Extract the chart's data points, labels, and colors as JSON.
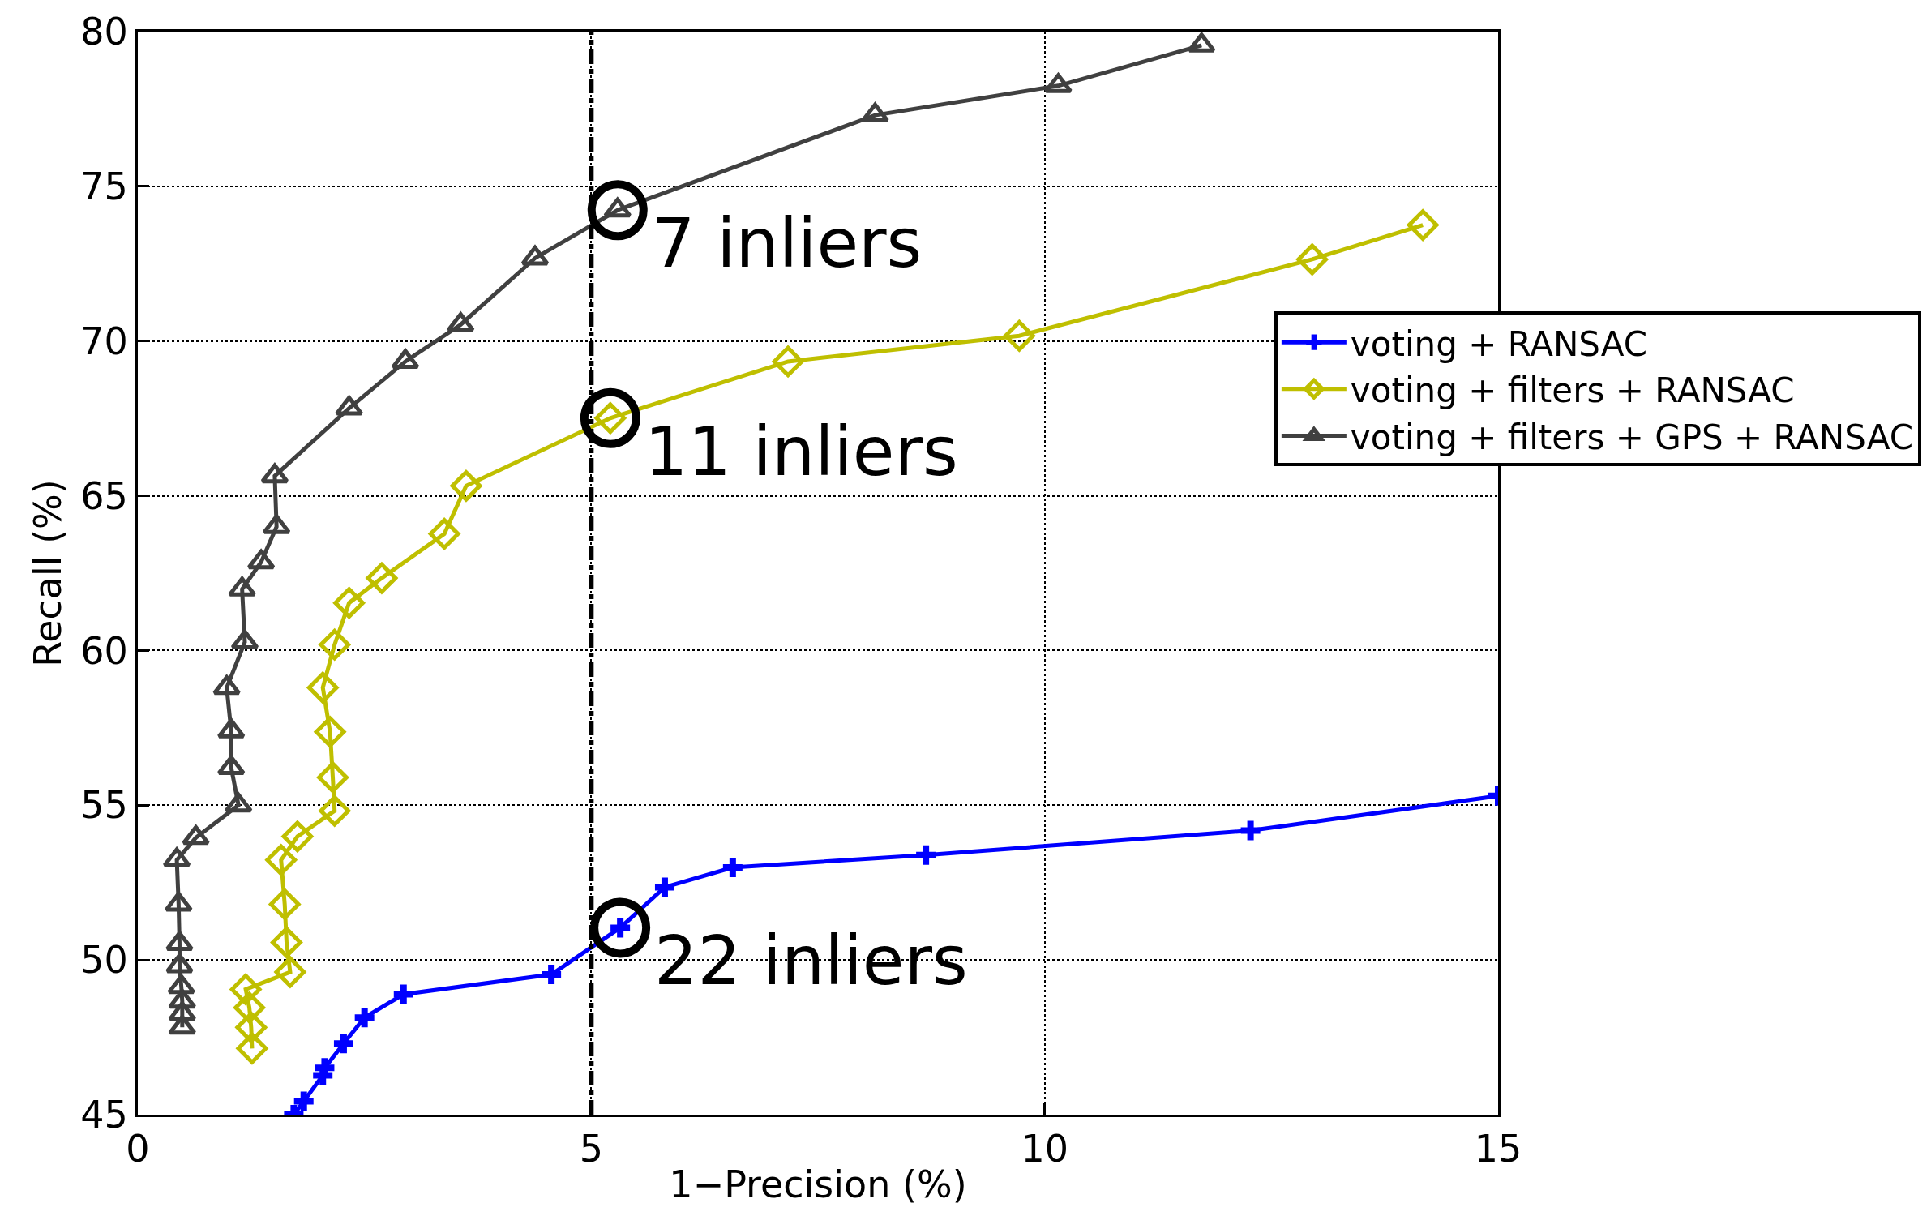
{
  "chart_data": {
    "type": "line",
    "xlabel": "1−Precision (%)",
    "ylabel": "Recall (%)",
    "xlim": [
      0,
      15
    ],
    "ylim": [
      45,
      80
    ],
    "xticks": [
      0,
      5,
      10,
      15
    ],
    "yticks": [
      45,
      50,
      55,
      60,
      65,
      70,
      75,
      80
    ],
    "grid": true,
    "legend": "right",
    "series": [
      {
        "name": "voting + RANSAC",
        "color": "#0000ff",
        "marker": "cross",
        "x": [
          1.72,
          1.83,
          2.04,
          2.06,
          2.27,
          2.5,
          2.93,
          4.56,
          5.32,
          5.81,
          6.56,
          8.69,
          12.27,
          15
        ],
        "values": [
          45.0,
          45.43,
          46.27,
          46.51,
          47.3,
          48.14,
          48.89,
          49.53,
          51.04,
          52.35,
          52.99,
          53.39,
          54.18,
          55.3
        ]
      },
      {
        "name": "voting + filters + RANSAC",
        "color": "#bfbf00",
        "marker": "diamond",
        "x": [
          1.26,
          1.25,
          1.23,
          1.19,
          1.68,
          1.64,
          1.62,
          1.58,
          1.76,
          2.17,
          2.15,
          2.12,
          2.04,
          2.17,
          2.33,
          2.69,
          3.38,
          3.62,
          5.21,
          7.17,
          9.72,
          12.95,
          14.17
        ],
        "values": [
          47.14,
          47.82,
          48.46,
          49.05,
          49.61,
          50.57,
          51.8,
          53.23,
          53.99,
          54.82,
          55.9,
          57.37,
          58.8,
          60.19,
          61.54,
          62.34,
          63.77,
          65.32,
          67.51,
          69.34,
          70.17,
          72.64,
          73.75
        ]
      },
      {
        "name": "voting + filters + GPS + RANSAC",
        "color": "#404040",
        "marker": "triangle",
        "x": [
          0.49,
          0.49,
          0.49,
          0.48,
          0.46,
          0.46,
          0.45,
          0.43,
          0.64,
          1.11,
          1.03,
          1.03,
          0.98,
          1.18,
          1.15,
          1.36,
          1.53,
          1.51,
          2.33,
          2.95,
          3.56,
          4.38,
          5.29,
          8.13,
          10.15,
          11.73
        ],
        "values": [
          47.82,
          48.26,
          48.66,
          49.13,
          49.81,
          50.53,
          51.8,
          53.23,
          53.95,
          55.0,
          56.21,
          57.4,
          58.8,
          60.27,
          61.98,
          62.86,
          64.0,
          65.64,
          67.83,
          69.34,
          70.53,
          72.68,
          74.23,
          77.3,
          78.25,
          79.56
        ]
      }
    ],
    "ref_lines": [
      {
        "axis": "x",
        "value": 5,
        "color": "#000000",
        "line_style": "dashdot"
      }
    ],
    "annotations": [
      {
        "text": "7 inliers",
        "x": 5.29,
        "y": 74.23
      },
      {
        "text": "11 inliers",
        "x": 5.21,
        "y": 67.51
      },
      {
        "text": "22 inliers",
        "x": 5.32,
        "y": 51.04
      }
    ]
  }
}
